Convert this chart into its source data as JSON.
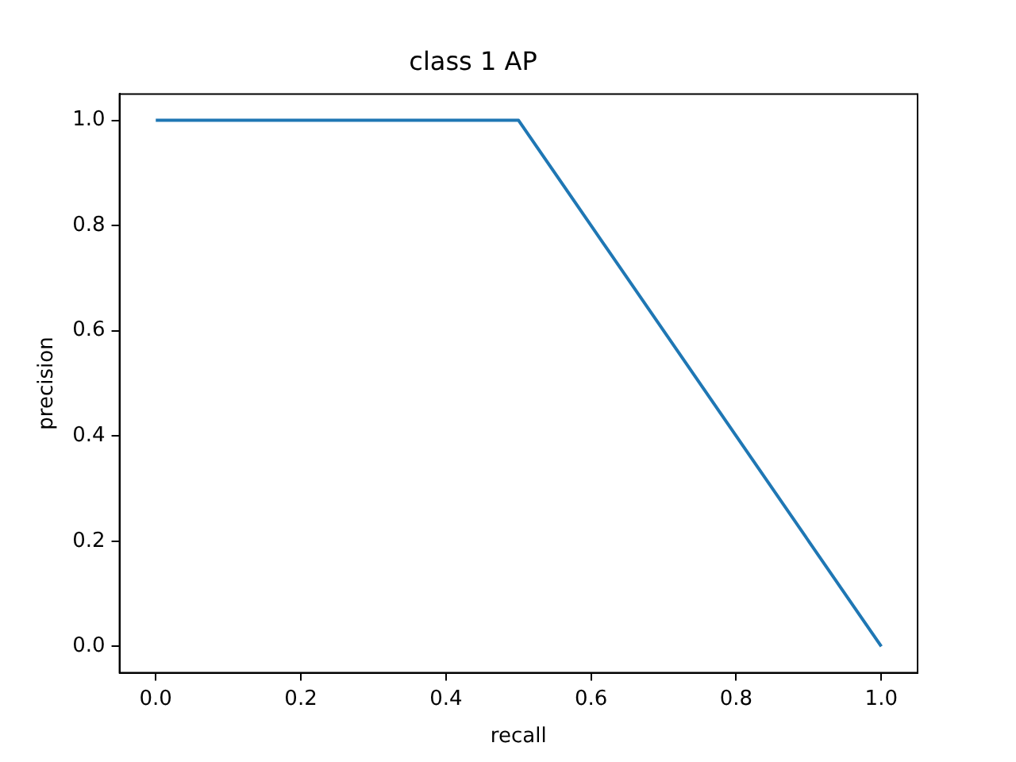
{
  "chart_data": {
    "type": "line",
    "title": "class 1 AP",
    "xlabel": "recall",
    "ylabel": "precision",
    "x": [
      0,
      0.5,
      1
    ],
    "series": [
      {
        "color": "#1f77b4",
        "values": [
          1,
          1,
          0
        ]
      }
    ],
    "xlim": [
      -0.05,
      1.05
    ],
    "ylim": [
      -0.05,
      1.05
    ],
    "xticks": [
      {
        "value": 0,
        "label": "0.0"
      },
      {
        "value": 0.2,
        "label": "0.2"
      },
      {
        "value": 0.4,
        "label": "0.4"
      },
      {
        "value": 0.6,
        "label": "0.6"
      },
      {
        "value": 0.8,
        "label": "0.8"
      },
      {
        "value": 1,
        "label": "1.0"
      }
    ],
    "yticks": [
      {
        "value": 0,
        "label": "0.0"
      },
      {
        "value": 0.2,
        "label": "0.2"
      },
      {
        "value": 0.4,
        "label": "0.4"
      },
      {
        "value": 0.6,
        "label": "0.6"
      },
      {
        "value": 0.8,
        "label": "0.8"
      },
      {
        "value": 1,
        "label": "1.0"
      }
    ],
    "grid": false,
    "legend": false,
    "marker": "none",
    "line_style": "solid"
  }
}
